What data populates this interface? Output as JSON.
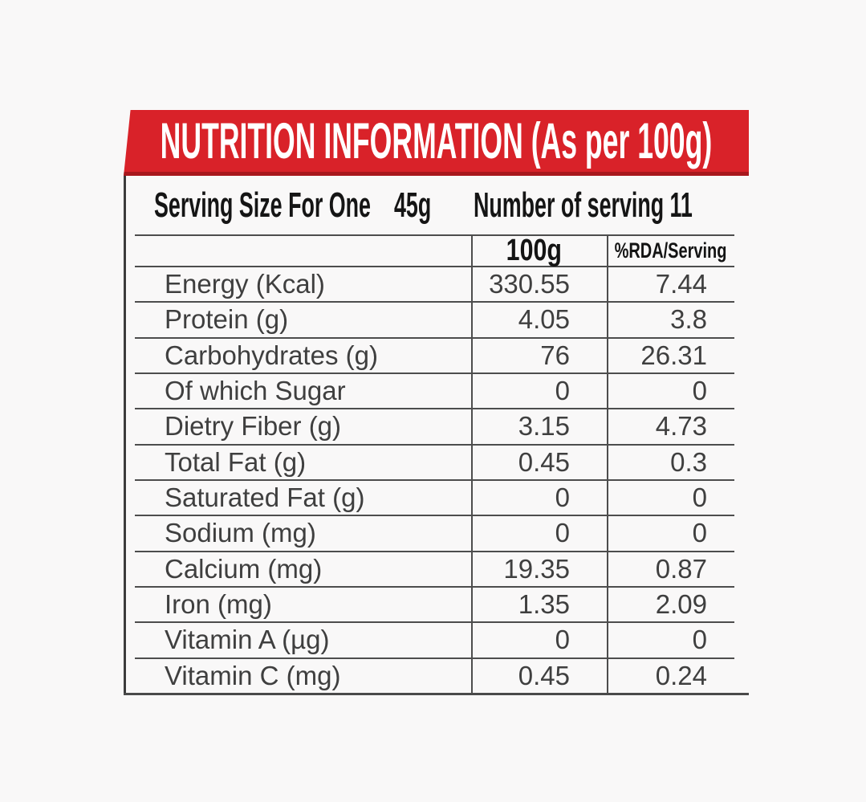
{
  "colors": {
    "banner_red": "#d92229",
    "banner_red_dark_edge": "#a8181d",
    "line_gray": "#4d4d4d",
    "row_text": "#3f3f3f",
    "heading_text": "#151515",
    "background": "#f9f8f8"
  },
  "banner": {
    "title": "NUTRITION INFORMATION (As per 100g)"
  },
  "serving": {
    "size_label": "Serving Size For One",
    "size_value": "45g",
    "count_label": "Number of serving",
    "count_value": "11"
  },
  "table": {
    "col_headers": {
      "per_100g": "100g",
      "rda": "%RDA/Serving"
    },
    "rows": [
      {
        "label": "Energy (Kcal)",
        "per100g": "330.55",
        "rda": "7.44"
      },
      {
        "label": "Protein (g)",
        "per100g": "4.05",
        "rda": "3.8"
      },
      {
        "label": "Carbohydrates (g)",
        "per100g": "76",
        "rda": "26.31"
      },
      {
        "label": "Of which Sugar",
        "per100g": "0",
        "rda": "0"
      },
      {
        "label": "Dietry Fiber (g)",
        "per100g": "3.15",
        "rda": "4.73"
      },
      {
        "label": "Total Fat (g)",
        "per100g": "0.45",
        "rda": "0.3"
      },
      {
        "label": "Saturated Fat (g)",
        "per100g": "0",
        "rda": "0"
      },
      {
        "label": "Sodium (mg)",
        "per100g": "0",
        "rda": "0"
      },
      {
        "label": "Calcium (mg)",
        "per100g": "19.35",
        "rda": "0.87"
      },
      {
        "label": "Iron (mg)",
        "per100g": "1.35",
        "rda": "2.09"
      },
      {
        "label": "Vitamin A (µg)",
        "per100g": "0",
        "rda": "0"
      },
      {
        "label": "Vitamin C (mg)",
        "per100g": "0.45",
        "rda": "0.24"
      }
    ]
  }
}
